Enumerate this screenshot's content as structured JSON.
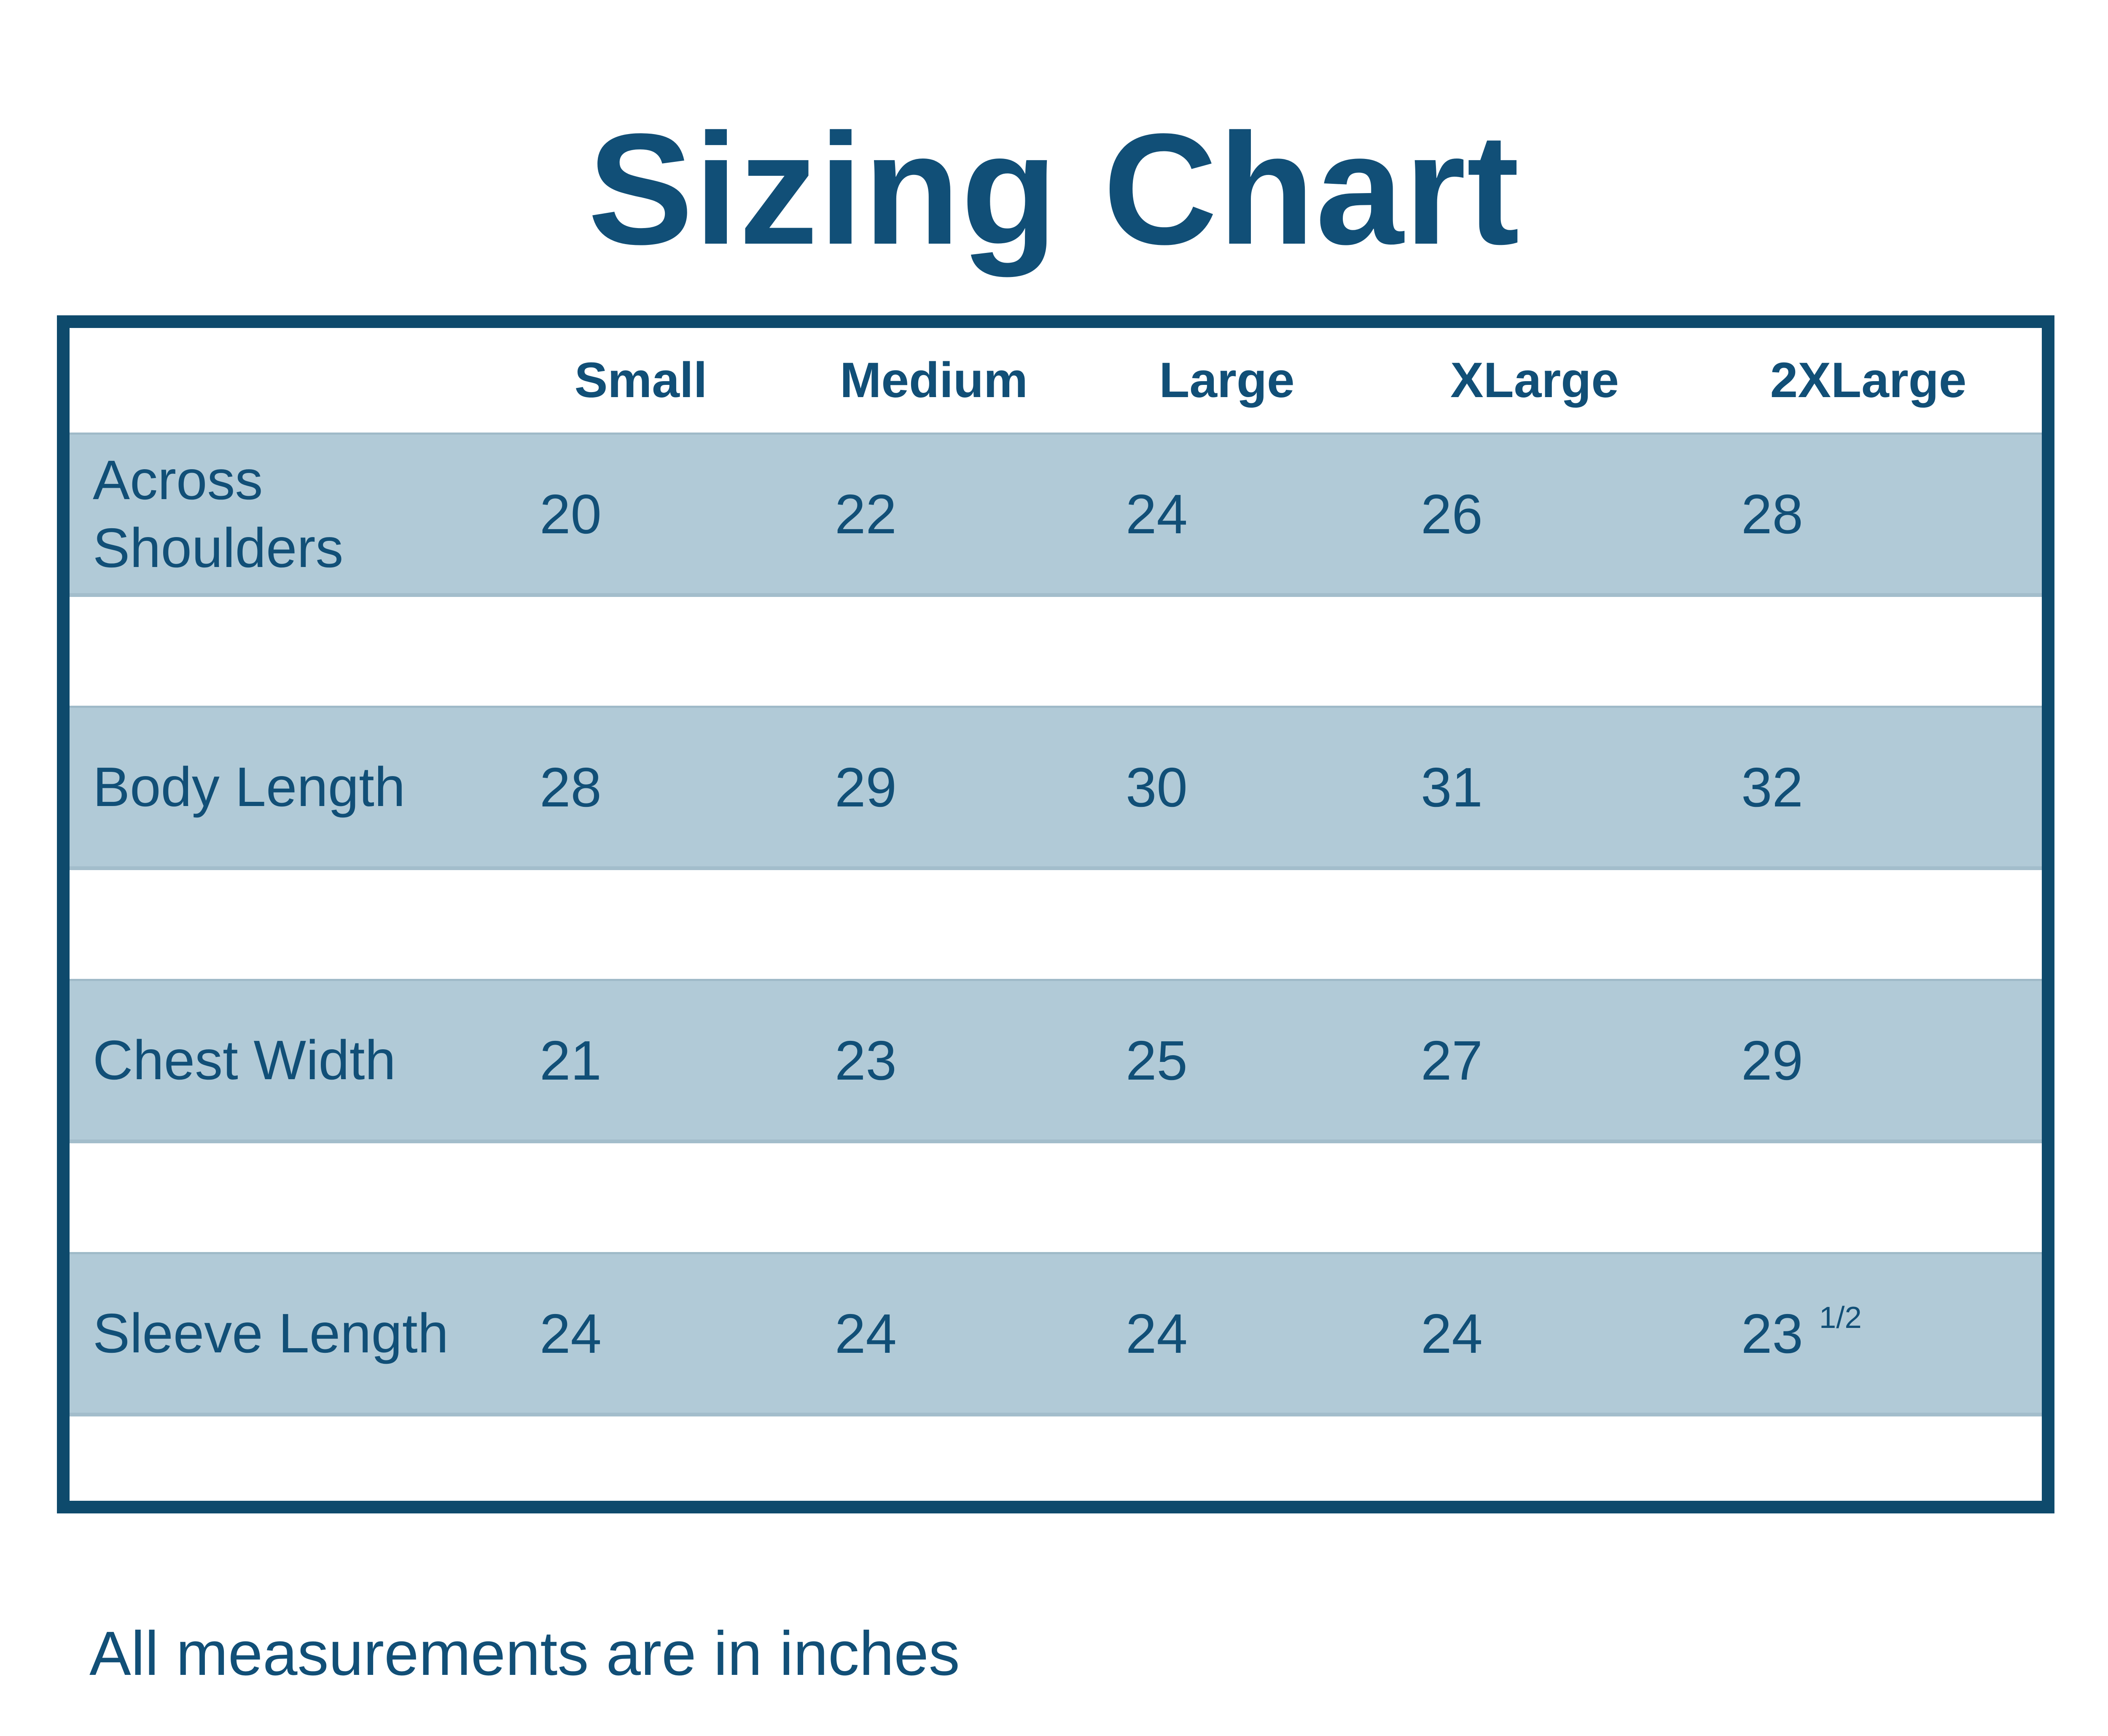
{
  "title": "Sizing Chart",
  "footer": "All measurements are in inches",
  "table": {
    "corner_label": "",
    "columns": [
      "Small",
      "Medium",
      "Large",
      "XLarge",
      "2XLarge"
    ],
    "rows": [
      {
        "label": "Across Shoulders",
        "values": [
          "20",
          "22",
          "24",
          "26",
          "28"
        ]
      },
      {
        "label": "Body Length",
        "values": [
          "28",
          "29",
          "30",
          "31",
          "32"
        ]
      },
      {
        "label": "Chest Width",
        "values": [
          "21",
          "23",
          "25",
          "27",
          "29"
        ]
      },
      {
        "label": "Sleeve Length",
        "values": [
          "24",
          "24",
          "24",
          "24",
          "23 1/2"
        ]
      }
    ]
  },
  "chart_data": {
    "type": "table",
    "title": "Sizing Chart",
    "columns": [
      "Small",
      "Medium",
      "Large",
      "XLarge",
      "2XLarge"
    ],
    "rows": [
      {
        "label": "Across Shoulders",
        "values": [
          20,
          22,
          24,
          26,
          28
        ]
      },
      {
        "label": "Body Length",
        "values": [
          28,
          29,
          30,
          31,
          32
        ]
      },
      {
        "label": "Chest Width",
        "values": [
          21,
          23,
          25,
          27,
          29
        ]
      },
      {
        "label": "Sleeve Length",
        "values": [
          24,
          24,
          24,
          24,
          23.5
        ]
      }
    ],
    "note": "All measurements are in inches",
    "units": "inches"
  },
  "colors": {
    "accent": "#114f77",
    "frame_border": "#0e4a6c",
    "row_band": "#b1cad7",
    "background": "#ffffff"
  }
}
